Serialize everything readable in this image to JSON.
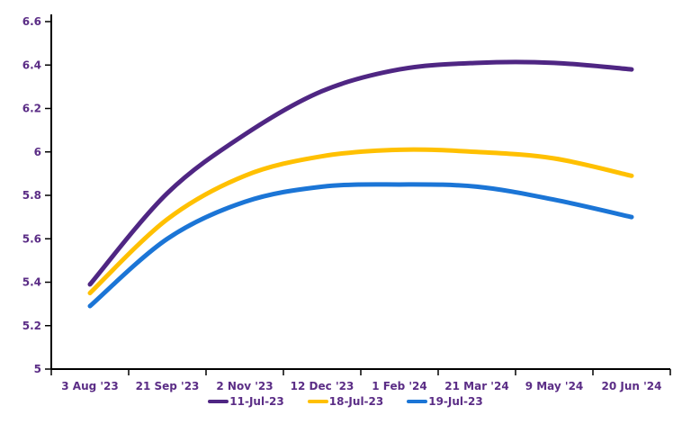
{
  "chart_data": {
    "type": "line",
    "categories": [
      "3 Aug '23",
      "21 Sep '23",
      "2 Nov '23",
      "12 Dec '23",
      "1 Feb '24",
      "21 Mar '24",
      "9 May '24",
      "20 Jun '24"
    ],
    "series": [
      {
        "name": "11-Jul-23",
        "color": "#4F2683",
        "values": [
          5.39,
          5.81,
          6.08,
          6.28,
          6.38,
          6.41,
          6.41,
          6.38
        ]
      },
      {
        "name": "18-Jul-23",
        "color": "#FFC000",
        "values": [
          5.35,
          5.69,
          5.89,
          5.98,
          6.01,
          6.0,
          5.97,
          5.89
        ]
      },
      {
        "name": "19-Jul-23",
        "color": "#1B75D6",
        "values": [
          5.29,
          5.6,
          5.77,
          5.84,
          5.85,
          5.84,
          5.78,
          5.7
        ]
      }
    ],
    "title": "",
    "xlabel": "",
    "ylabel": "",
    "ylim": [
      5,
      6.6
    ],
    "ytick_step": 0.2,
    "ytick_labels": [
      "5",
      "5.2",
      "5.4",
      "5.6",
      "5.8",
      "6",
      "6.2",
      "6.4",
      "6.6"
    ],
    "grid": false,
    "legend_position": "bottom",
    "axis_color": "#000000",
    "label_color": "#5B2D86",
    "background_color": "#ffffff",
    "line_width": 5
  }
}
